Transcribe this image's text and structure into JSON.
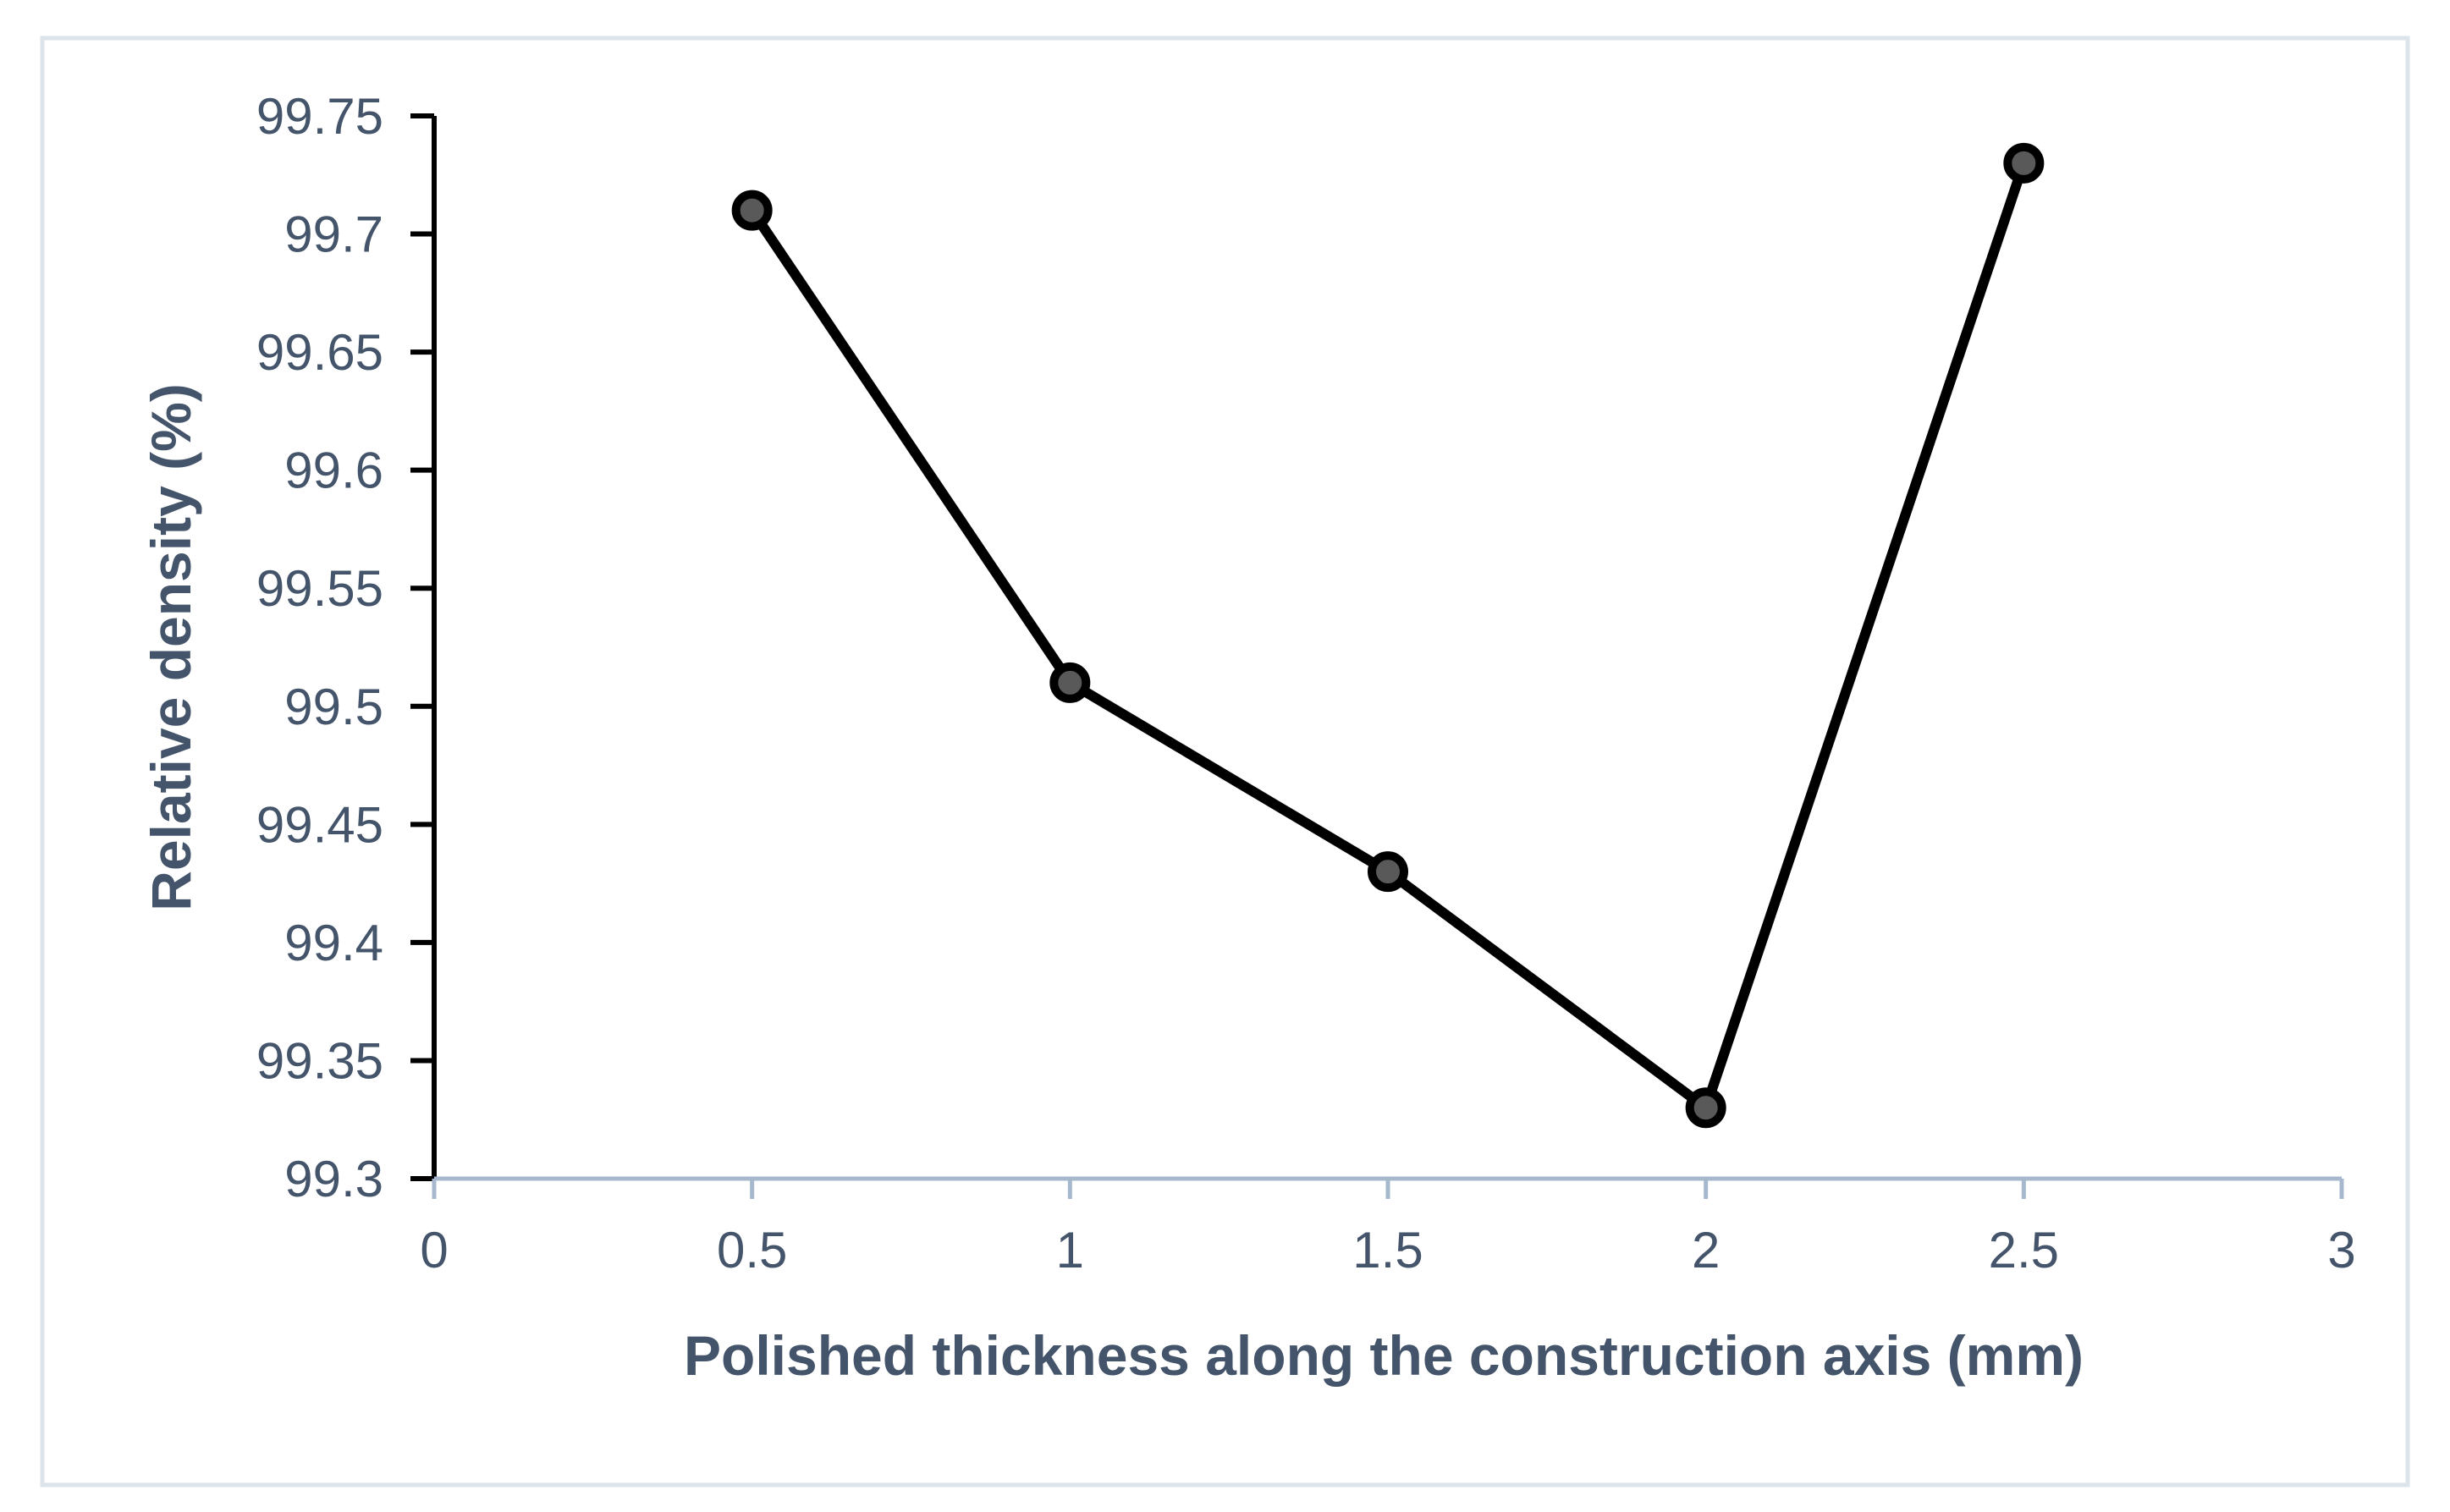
{
  "chart_data": {
    "type": "line",
    "title": "",
    "xlabel": "Polished thickness along the construction axis (mm)",
    "ylabel": "Relative density (%)",
    "xlim": [
      0,
      3
    ],
    "ylim": [
      99.3,
      99.75
    ],
    "x_ticks": [
      "0",
      "0.5",
      "1",
      "1.5",
      "2",
      "2.5",
      "3"
    ],
    "y_ticks": [
      "99.3",
      "99.35",
      "99.4",
      "99.45",
      "99.5",
      "99.55",
      "99.6",
      "99.65",
      "99.7",
      "99.75"
    ],
    "grid": false,
    "legend": "none",
    "series": [
      {
        "x": [
          0.5,
          1,
          1.5,
          2,
          2.5
        ],
        "y": [
          99.71,
          99.51,
          99.43,
          99.33,
          99.73
        ]
      }
    ],
    "colors": {
      "line": "#000000",
      "marker_fill": "#595959",
      "axis_text": "#44546a",
      "x_axis_line": "#a6b8cc",
      "y_axis_line": "#000000",
      "frame_border": "#dce3ea"
    }
  }
}
